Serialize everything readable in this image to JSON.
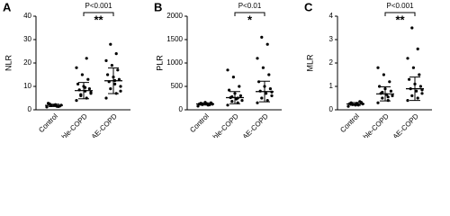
{
  "chart_data": [
    {
      "type": "dot",
      "panel": "A",
      "ylabel": "NLR",
      "categories": [
        "Control",
        "stable-COPD",
        "AE-COPD"
      ],
      "values": [
        [
          1.2,
          1.5,
          1.8,
          2.0,
          2.2,
          2.5,
          1.6,
          1.9,
          2.8,
          1.4
        ],
        [
          4,
          5,
          6,
          7,
          8,
          8.5,
          9,
          10,
          11,
          13,
          15,
          18,
          22,
          6.5,
          7.5,
          9.5
        ],
        [
          5,
          7,
          9,
          10,
          11,
          12,
          13,
          14,
          15,
          17,
          19,
          21,
          24,
          28,
          8,
          12.5
        ]
      ],
      "mean": [
        1.9,
        8.2,
        12.4
      ],
      "sd": [
        0.5,
        3.5,
        5.5
      ],
      "ylim": [
        0,
        40
      ],
      "yticks": [
        0,
        10,
        20,
        30,
        40
      ],
      "color": "#000000",
      "p_label": "P<0.001",
      "stars": "**"
    },
    {
      "type": "dot",
      "panel": "B",
      "ylabel": "PLR",
      "categories": [
        "Control",
        "stable-COPD",
        "AE-COPD"
      ],
      "values": [
        [
          80,
          100,
          110,
          120,
          130,
          140,
          150,
          160,
          125,
          105
        ],
        [
          100,
          150,
          180,
          200,
          230,
          260,
          300,
          350,
          420,
          500,
          700,
          850,
          250,
          280
        ],
        [
          150,
          200,
          250,
          300,
          350,
          400,
          450,
          500,
          600,
          750,
          900,
          1100,
          1400,
          1550,
          380
        ]
      ],
      "mean": [
        125,
        260,
        390
      ],
      "sd": [
        25,
        130,
        220
      ],
      "ylim": [
        0,
        2000
      ],
      "yticks": [
        0,
        500,
        1000,
        1500,
        2000
      ],
      "color": "#000000",
      "p_label": "P<0.01",
      "stars": "*"
    },
    {
      "type": "dot",
      "panel": "C",
      "ylabel": "MLR",
      "categories": [
        "Control",
        "stable-COPD",
        "AE-COPD"
      ],
      "values": [
        [
          0.15,
          0.2,
          0.22,
          0.25,
          0.28,
          0.3,
          0.32,
          0.2,
          0.26,
          0.35
        ],
        [
          0.3,
          0.4,
          0.5,
          0.6,
          0.65,
          0.7,
          0.8,
          0.9,
          1.0,
          1.2,
          1.5,
          1.8,
          0.55,
          0.75
        ],
        [
          0.4,
          0.5,
          0.6,
          0.7,
          0.8,
          0.9,
          1.0,
          1.1,
          1.3,
          1.5,
          1.8,
          2.2,
          2.6,
          3.5,
          0.85
        ]
      ],
      "mean": [
        0.25,
        0.68,
        0.9
      ],
      "sd": [
        0.06,
        0.3,
        0.5
      ],
      "ylim": [
        0,
        4
      ],
      "yticks": [
        0,
        1,
        2,
        3,
        4
      ],
      "color": "#000000",
      "p_label": "P<0.001",
      "stars": "**"
    }
  ]
}
